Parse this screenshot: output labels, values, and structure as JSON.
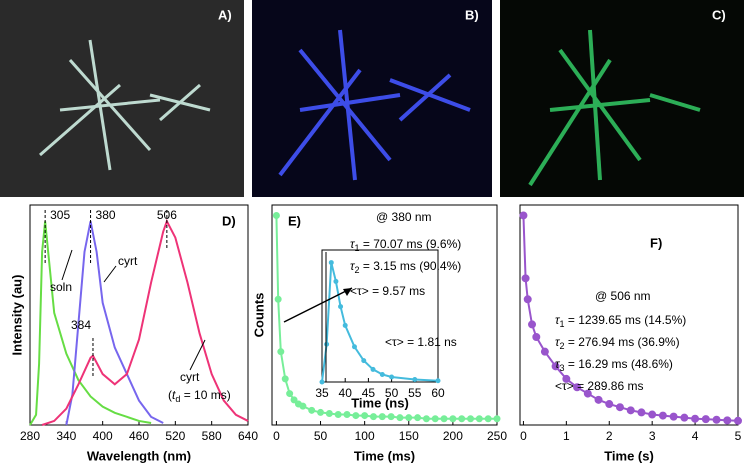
{
  "photos": [
    "A)",
    "B)",
    "C)"
  ],
  "chart_data": [
    {
      "type": "line",
      "label": "D)",
      "xlabel": "Wavelength (nm)",
      "ylabel": "Intensity (au)",
      "xlim": [
        280,
        640
      ],
      "xticks": [
        280,
        340,
        400,
        460,
        520,
        580,
        640
      ],
      "ylim": [
        0,
        1.08
      ],
      "series": [
        {
          "color": "#66dd44",
          "x": [
            280,
            290,
            295,
            300,
            305,
            310,
            320,
            340,
            360,
            380,
            400,
            420,
            440,
            460,
            480
          ],
          "values": [
            0,
            0.05,
            0.3,
            0.85,
            1.0,
            0.85,
            0.55,
            0.35,
            0.22,
            0.14,
            0.09,
            0.06,
            0.04,
            0.02,
            0.01
          ]
        },
        {
          "color": "#7766ee",
          "x": [
            340,
            350,
            360,
            370,
            380,
            390,
            400,
            420,
            440,
            460,
            480,
            500
          ],
          "values": [
            0,
            0.15,
            0.5,
            0.85,
            1.0,
            0.85,
            0.6,
            0.38,
            0.25,
            0.12,
            0.04,
            0.01
          ]
        },
        {
          "color": "#ee3377",
          "x": [
            300,
            320,
            340,
            360,
            380,
            384,
            400,
            420,
            440,
            460,
            480,
            500,
            506,
            520,
            540,
            560,
            580,
            600,
            620,
            640
          ],
          "values": [
            0,
            0.02,
            0.08,
            0.2,
            0.33,
            0.34,
            0.25,
            0.2,
            0.25,
            0.42,
            0.7,
            0.95,
            1.0,
            0.92,
            0.7,
            0.45,
            0.25,
            0.12,
            0.05,
            0.02
          ]
        }
      ],
      "annotations": [
        "305",
        "380",
        "506",
        "384",
        "soln",
        "cyrt",
        "cyrt"
      ],
      "delay": {
        "open": "(",
        "sym": "t",
        "sub": "d",
        "rest": " = 10 ms)"
      }
    },
    {
      "type": "line",
      "label": "E)",
      "xlabel": "Time (ms)",
      "ylabel": "Counts",
      "xlim": [
        -5,
        250
      ],
      "xticks": [
        0,
        50,
        100,
        150,
        200,
        250
      ],
      "ylim": [
        0,
        1.05
      ],
      "series": [
        {
          "color": "#77ee99",
          "markers": true,
          "x": [
            0,
            2,
            5,
            10,
            15,
            20,
            25,
            30,
            40,
            50,
            60,
            70,
            80,
            90,
            100,
            110,
            120,
            130,
            140,
            150,
            160,
            170,
            180,
            190,
            200,
            210,
            220,
            230,
            240,
            250
          ],
          "values": [
            1.0,
            0.6,
            0.35,
            0.22,
            0.15,
            0.12,
            0.1,
            0.09,
            0.07,
            0.06,
            0.055,
            0.05,
            0.05,
            0.045,
            0.045,
            0.04,
            0.04,
            0.04,
            0.035,
            0.035,
            0.035,
            0.03,
            0.03,
            0.03,
            0.03,
            0.03,
            0.03,
            0.03,
            0.03,
            0.03
          ]
        }
      ],
      "inset": {
        "xlabel": "Time (ns)",
        "xlim": [
          35,
          60
        ],
        "xticks": [
          35,
          40,
          45,
          50,
          55,
          60
        ],
        "ylim": [
          0,
          1.05
        ],
        "series": [
          {
            "color": "#44bbdd",
            "markers": true,
            "x": [
              35,
              36,
              37,
              38,
              39,
              40,
              42,
              44,
              46,
              48,
              50,
              55,
              60
            ],
            "values": [
              0,
              0.3,
              0.95,
              0.8,
              0.6,
              0.45,
              0.28,
              0.17,
              0.1,
              0.06,
              0.04,
              0.02,
              0.01
            ]
          }
        ]
      },
      "header": "@ 380 nm",
      "taus": [
        {
          "sym": "τ",
          "sub": "1",
          "rest": " = 70.07 ms (9.6%)"
        },
        {
          "sym": "τ",
          "sub": "2",
          "rest": " = 3.15   ms (90.4%)"
        }
      ],
      "averages": [
        "<τ> = 9.57 ms",
        "<τ> = 1.81 ns"
      ]
    },
    {
      "type": "line",
      "label": "F)",
      "xlabel": "Time (s)",
      "xlim": [
        -0.08,
        5
      ],
      "xticks": [
        0,
        1,
        2,
        3,
        4,
        5
      ],
      "ylim": [
        0,
        1.05
      ],
      "series": [
        {
          "color": "#9955cc",
          "markers": true,
          "x": [
            0,
            0.05,
            0.1,
            0.2,
            0.3,
            0.5,
            0.75,
            1,
            1.25,
            1.5,
            1.75,
            2,
            2.25,
            2.5,
            2.75,
            3,
            3.25,
            3.5,
            3.75,
            4,
            4.25,
            4.5,
            4.75,
            5
          ],
          "values": [
            1.0,
            0.7,
            0.6,
            0.48,
            0.42,
            0.35,
            0.28,
            0.22,
            0.18,
            0.15,
            0.12,
            0.1,
            0.085,
            0.07,
            0.06,
            0.05,
            0.045,
            0.04,
            0.035,
            0.03,
            0.028,
            0.025,
            0.022,
            0.02
          ]
        }
      ],
      "header": "@ 506 nm",
      "taus": [
        {
          "sym": "τ",
          "sub": "1",
          "rest": " = 1239.65 ms (14.5%)"
        },
        {
          "sym": "τ",
          "sub": "2",
          "rest": " =   276.94 ms (36.9%)"
        },
        {
          "sym": "τ",
          "sub": "3",
          "rest": " =     16.29 ms (48.6%)"
        }
      ],
      "averages": [
        "<τ> = 289.86 ms"
      ]
    }
  ]
}
